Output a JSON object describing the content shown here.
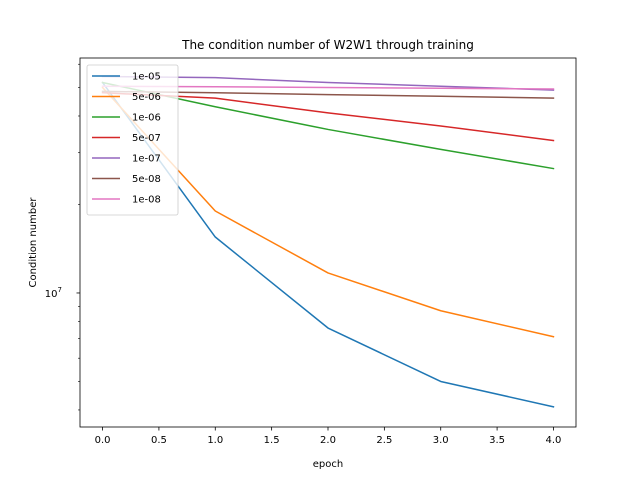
{
  "chart_data": {
    "type": "line",
    "title": "The condition number of W2W1 through training",
    "xlabel": "epoch",
    "ylabel": "Condition number",
    "y_scale": "log",
    "xlim": [
      -0.2,
      4.2
    ],
    "ylim": [
      3500000,
      63000000
    ],
    "x_ticks": [
      0.0,
      0.5,
      1.0,
      1.5,
      2.0,
      2.5,
      3.0,
      3.5,
      4.0
    ],
    "x_tick_labels": [
      "0.0",
      "0.5",
      "1.0",
      "1.5",
      "2.0",
      "2.5",
      "3.0",
      "3.5",
      "4.0"
    ],
    "y_major_ticks": [
      {
        "value": 10000000,
        "base": "10",
        "exp": "7"
      }
    ],
    "grid": false,
    "legend_position": "upper-left",
    "x": [
      0,
      1,
      2,
      3,
      4
    ],
    "series": [
      {
        "name": "1e-05",
        "color": "#1f77b4",
        "values": [
          52000000,
          15500000,
          7600000,
          5000000,
          4100000
        ]
      },
      {
        "name": "5e-06",
        "color": "#ff7f0e",
        "values": [
          50000000,
          19000000,
          11700000,
          8700000,
          7100000
        ]
      },
      {
        "name": "1e-06",
        "color": "#2ca02c",
        "values": [
          52000000,
          43000000,
          36000000,
          30800000,
          26500000
        ]
      },
      {
        "name": "5e-07",
        "color": "#d62728",
        "values": [
          48000000,
          46000000,
          41000000,
          37000000,
          33000000
        ]
      },
      {
        "name": "1e-07",
        "color": "#9467bd",
        "values": [
          54500000,
          54000000,
          52000000,
          50500000,
          49000000
        ]
      },
      {
        "name": "5e-08",
        "color": "#8c564b",
        "values": [
          48500000,
          48000000,
          47300000,
          46700000,
          46000000
        ]
      },
      {
        "name": "1e-08",
        "color": "#e377c2",
        "values": [
          50500000,
          50300000,
          50000000,
          49700000,
          49400000
        ]
      }
    ]
  }
}
